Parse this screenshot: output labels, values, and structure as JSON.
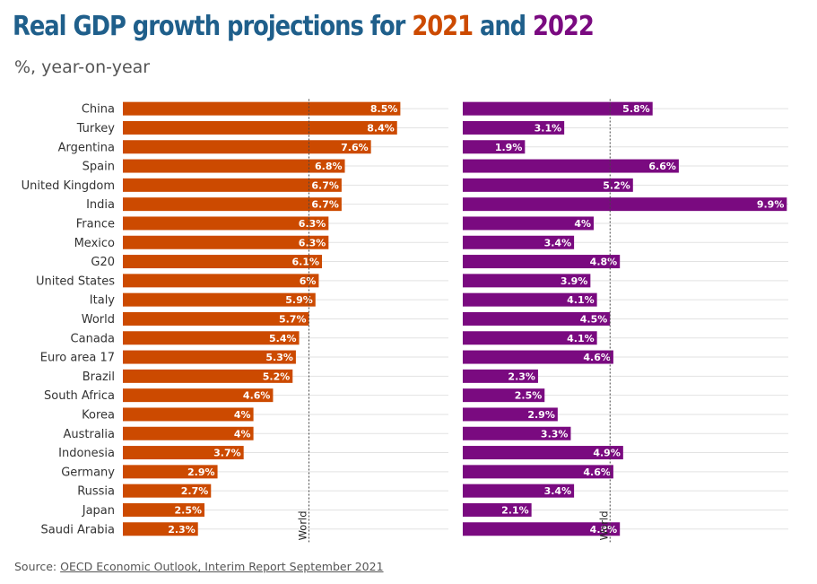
{
  "title": {
    "prefix": "Real GDP growth projections for ",
    "year1": "2021",
    "middle": " and ",
    "year2": "2022",
    "color_main": "#1f5f8b",
    "color_year1": "#cc4a00",
    "color_year2": "#7a0a80"
  },
  "subtitle": "%, year-on-year",
  "source": {
    "prefix": "Source: ",
    "link_text": "OECD Economic Outlook, Interim Report September 2021"
  },
  "chart_data": {
    "type": "bar",
    "orientation": "horizontal",
    "categories": [
      "China",
      "Turkey",
      "Argentina",
      "Spain",
      "United Kingdom",
      "India",
      "France",
      "Mexico",
      "G20",
      "United States",
      "Italy",
      "World",
      "Canada",
      "Euro area 17",
      "Brazil",
      "South Africa",
      "Korea",
      "Australia",
      "Indonesia",
      "Germany",
      "Russia",
      "Japan",
      "Saudi Arabia"
    ],
    "series": [
      {
        "name": "2021",
        "color": "#cc4a00",
        "values": [
          8.5,
          8.4,
          7.6,
          6.8,
          6.7,
          6.7,
          6.3,
          6.3,
          6.1,
          6,
          5.9,
          5.7,
          5.4,
          5.3,
          5.2,
          4.6,
          4,
          4,
          3.7,
          2.9,
          2.7,
          2.5,
          2.3
        ],
        "labels": [
          "8.5%",
          "8.4%",
          "7.6%",
          "6.8%",
          "6.7%",
          "6.7%",
          "6.3%",
          "6.3%",
          "6.1%",
          "6%",
          "5.9%",
          "5.7%",
          "5.4%",
          "5.3%",
          "5.2%",
          "4.6%",
          "4%",
          "4%",
          "3.7%",
          "2.9%",
          "2.7%",
          "2.5%",
          "2.3%"
        ],
        "reference_line": {
          "label": "World",
          "value": 5.7
        }
      },
      {
        "name": "2022",
        "color": "#7a0a80",
        "values": [
          5.8,
          3.1,
          1.9,
          6.6,
          5.2,
          9.9,
          4,
          3.4,
          4.8,
          3.9,
          4.1,
          4.5,
          4.1,
          4.6,
          2.3,
          2.5,
          2.9,
          3.3,
          4.9,
          4.6,
          3.4,
          2.1,
          4.8
        ],
        "labels": [
          "5.8%",
          "3.1%",
          "1.9%",
          "6.6%",
          "5.2%",
          "9.9%",
          "4%",
          "3.4%",
          "4.8%",
          "3.9%",
          "4.1%",
          "4.5%",
          "4.1%",
          "4.6%",
          "2.3%",
          "2.5%",
          "2.9%",
          "3.3%",
          "4.9%",
          "4.6%",
          "3.4%",
          "2.1%",
          "4.8%"
        ],
        "reference_line": {
          "label": "World",
          "value": 4.5
        }
      }
    ],
    "grid": true
  }
}
